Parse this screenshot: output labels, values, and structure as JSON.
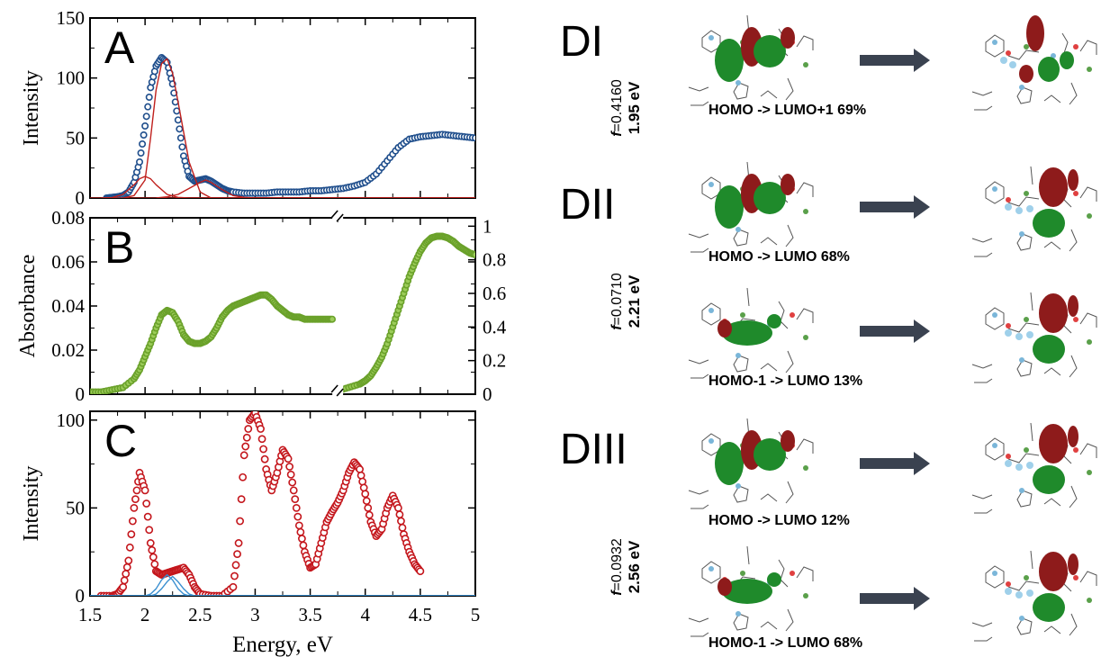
{
  "chart_data": [
    {
      "panel": "A",
      "type": "scatter",
      "letter": "A",
      "ylabel": "Intensity",
      "ylim": [
        0,
        150
      ],
      "xlim": [
        1.5,
        5
      ],
      "yticks": [
        "0",
        "50",
        "100",
        "150"
      ],
      "series": [
        {
          "style": "circles-blue",
          "x": [
            1.65,
            1.7,
            1.75,
            1.8,
            1.85,
            1.9,
            1.95,
            2.0,
            2.05,
            2.1,
            2.15,
            2.2,
            2.25,
            2.3,
            2.35,
            2.4,
            2.45,
            2.5,
            2.55,
            2.6,
            2.65,
            2.7,
            2.75,
            2.8,
            2.9,
            3.0,
            3.1,
            3.2,
            3.3,
            3.4,
            3.5,
            3.6,
            3.7,
            3.8,
            3.9,
            4.0,
            4.1,
            4.2,
            4.3,
            4.4,
            4.5,
            4.6,
            4.7,
            4.8,
            4.9,
            5.0
          ],
          "y": [
            0,
            0.5,
            1,
            2,
            5,
            13,
            30,
            60,
            92,
            110,
            117,
            113,
            95,
            65,
            35,
            18,
            14,
            15,
            16,
            14,
            11,
            8,
            6,
            5,
            4,
            4,
            4,
            5,
            5,
            5,
            6,
            6,
            7,
            8,
            10,
            13,
            20,
            31,
            42,
            49,
            51,
            52,
            53,
            52,
            51,
            50
          ]
        },
        {
          "style": "line-red",
          "x": [
            1.6,
            1.7,
            1.8,
            1.9,
            1.95,
            2.0,
            2.05,
            2.1,
            2.2,
            2.3,
            2.4,
            5.0
          ],
          "y": [
            0,
            0.3,
            3,
            11,
            16,
            18,
            16,
            11,
            3,
            0.5,
            0,
            0
          ]
        },
        {
          "style": "line-red",
          "x": [
            1.8,
            1.9,
            2.0,
            2.05,
            2.1,
            2.15,
            2.2,
            2.25,
            2.3,
            2.4,
            2.5,
            2.6,
            5.0
          ],
          "y": [
            0,
            2,
            15,
            50,
            90,
            112,
            116,
            104,
            80,
            30,
            5,
            0,
            0
          ]
        },
        {
          "style": "line-red",
          "x": [
            2.1,
            2.2,
            2.3,
            2.4,
            2.5,
            2.55,
            2.6,
            2.7,
            2.8,
            2.9,
            3.0,
            5.0
          ],
          "y": [
            0,
            1,
            3,
            8,
            13,
            15,
            13,
            7,
            2,
            0.5,
            0,
            0
          ]
        }
      ]
    },
    {
      "panel": "B",
      "type": "scatter",
      "letter": "B",
      "ylabel": "Absorbance",
      "ylim": [
        0,
        0.08
      ],
      "xlim": [
        1.5,
        5
      ],
      "yticks": [
        "0",
        "0.02",
        "0.04",
        "0.06",
        "0.08"
      ],
      "y2lim": [
        0,
        1.05
      ],
      "y2ticks": [
        "0",
        "0.2",
        "0.4",
        "0.6",
        "0.8",
        "1"
      ],
      "series": [
        {
          "style": "circles-green-left",
          "x": [
            1.5,
            1.6,
            1.7,
            1.8,
            1.9,
            1.95,
            2.0,
            2.05,
            2.1,
            2.15,
            2.2,
            2.25,
            2.3,
            2.35,
            2.4,
            2.45,
            2.5,
            2.55,
            2.6,
            2.65,
            2.7,
            2.75,
            2.8,
            2.85,
            2.9,
            2.95,
            3.0,
            3.05,
            3.1,
            3.15,
            3.2,
            3.25,
            3.3,
            3.35,
            3.4,
            3.45,
            3.5,
            3.55,
            3.6,
            3.65,
            3.7
          ],
          "y": [
            0.001,
            0.001,
            0.002,
            0.003,
            0.007,
            0.011,
            0.017,
            0.023,
            0.03,
            0.036,
            0.038,
            0.037,
            0.033,
            0.027,
            0.024,
            0.023,
            0.023,
            0.024,
            0.026,
            0.03,
            0.035,
            0.038,
            0.04,
            0.041,
            0.042,
            0.043,
            0.044,
            0.045,
            0.045,
            0.043,
            0.04,
            0.038,
            0.036,
            0.035,
            0.035,
            0.034,
            0.034,
            0.034,
            0.034,
            0.034,
            0.034
          ]
        },
        {
          "style": "circles-green-right",
          "x": [
            3.75,
            3.85,
            3.95,
            4.0,
            4.05,
            4.1,
            4.15,
            4.2,
            4.25,
            4.3,
            4.35,
            4.4,
            4.45,
            4.5,
            4.55,
            4.6,
            4.65,
            4.7,
            4.75,
            4.8,
            4.85,
            4.9,
            4.95,
            5.0
          ],
          "y": [
            0.02,
            0.04,
            0.06,
            0.08,
            0.11,
            0.16,
            0.22,
            0.3,
            0.4,
            0.5,
            0.6,
            0.7,
            0.78,
            0.85,
            0.9,
            0.93,
            0.94,
            0.94,
            0.93,
            0.91,
            0.88,
            0.86,
            0.84,
            0.83
          ]
        }
      ]
    },
    {
      "panel": "C",
      "type": "scatter",
      "letter": "C",
      "ylabel": "Intensity",
      "xlabel": "Energy, eV",
      "ylim": [
        0,
        105
      ],
      "xlim": [
        1.5,
        5
      ],
      "yticks": [
        "0",
        "50",
        "100"
      ],
      "xticks": [
        "1.5",
        "2",
        "2.5",
        "3",
        "3.5",
        "4",
        "4.5",
        "5"
      ],
      "series": [
        {
          "style": "circles-red",
          "x": [
            1.6,
            1.7,
            1.75,
            1.8,
            1.85,
            1.9,
            1.95,
            2.0,
            2.05,
            2.1,
            2.15,
            2.2,
            2.25,
            2.3,
            2.35,
            2.4,
            2.45,
            2.5,
            2.6,
            2.7,
            2.8,
            2.85,
            2.9,
            2.95,
            3.0,
            3.05,
            3.1,
            3.15,
            3.2,
            3.25,
            3.3,
            3.35,
            3.4,
            3.45,
            3.5,
            3.55,
            3.6,
            3.65,
            3.7,
            3.75,
            3.8,
            3.85,
            3.9,
            3.95,
            4.0,
            4.05,
            4.1,
            4.15,
            4.2,
            4.25,
            4.3,
            4.35,
            4.4,
            4.45,
            4.5
          ],
          "y": [
            0,
            0,
            1,
            5,
            20,
            50,
            70,
            60,
            30,
            14,
            12,
            13,
            14,
            15,
            16,
            12,
            5,
            1,
            0,
            0,
            5,
            30,
            80,
            100,
            104,
            95,
            72,
            60,
            70,
            83,
            78,
            60,
            40,
            25,
            16,
            18,
            30,
            42,
            48,
            53,
            60,
            70,
            76,
            72,
            58,
            42,
            34,
            38,
            50,
            57,
            50,
            35,
            25,
            18,
            14
          ]
        },
        {
          "style": "line-blue",
          "x": [
            1.5,
            2.0,
            2.05,
            2.1,
            2.15,
            2.2,
            2.25,
            2.3,
            2.35,
            2.4,
            5.0
          ],
          "y": [
            0,
            0,
            1,
            4,
            9,
            12,
            9,
            4,
            1,
            0,
            0
          ]
        },
        {
          "style": "line-blue",
          "x": [
            1.5,
            2.05,
            2.1,
            2.15,
            2.2,
            2.25,
            2.3,
            2.35,
            2.4,
            2.45,
            5.0
          ],
          "y": [
            0,
            0,
            1,
            4,
            8,
            11,
            8,
            4,
            1,
            0,
            0
          ]
        }
      ]
    }
  ],
  "transitions": {
    "groups": [
      {
        "label": "DI",
        "f_value": "=0.4160",
        "energy": "1.95 eV",
        "rows": [
          {
            "text": "HOMO -> LUMO+1  69%"
          }
        ]
      },
      {
        "label": "DII",
        "f_value": "=0.0710",
        "energy": "2.21 eV",
        "rows": [
          {
            "text": "HOMO -> LUMO  68%"
          },
          {
            "text": "HOMO-1 -> LUMO  13%"
          }
        ]
      },
      {
        "label": "DIII",
        "f_value": "=0.0932",
        "energy": "2.56 eV",
        "rows": [
          {
            "text": "HOMO -> LUMO  12%"
          },
          {
            "text": "HOMO-1 -> LUMO  68%"
          }
        ]
      }
    ],
    "f_symbol": "f"
  },
  "colors": {
    "blue_circles": "#1f4e8c",
    "red_lines": "#c0201d",
    "green_circles": "#6aa12a",
    "red_circles": "#c4161c",
    "cyan_lines": "#3a8fd0",
    "arrow": "#3a4250",
    "orbital_green": "#1f8a2b",
    "orbital_red": "#8e1b1b"
  }
}
